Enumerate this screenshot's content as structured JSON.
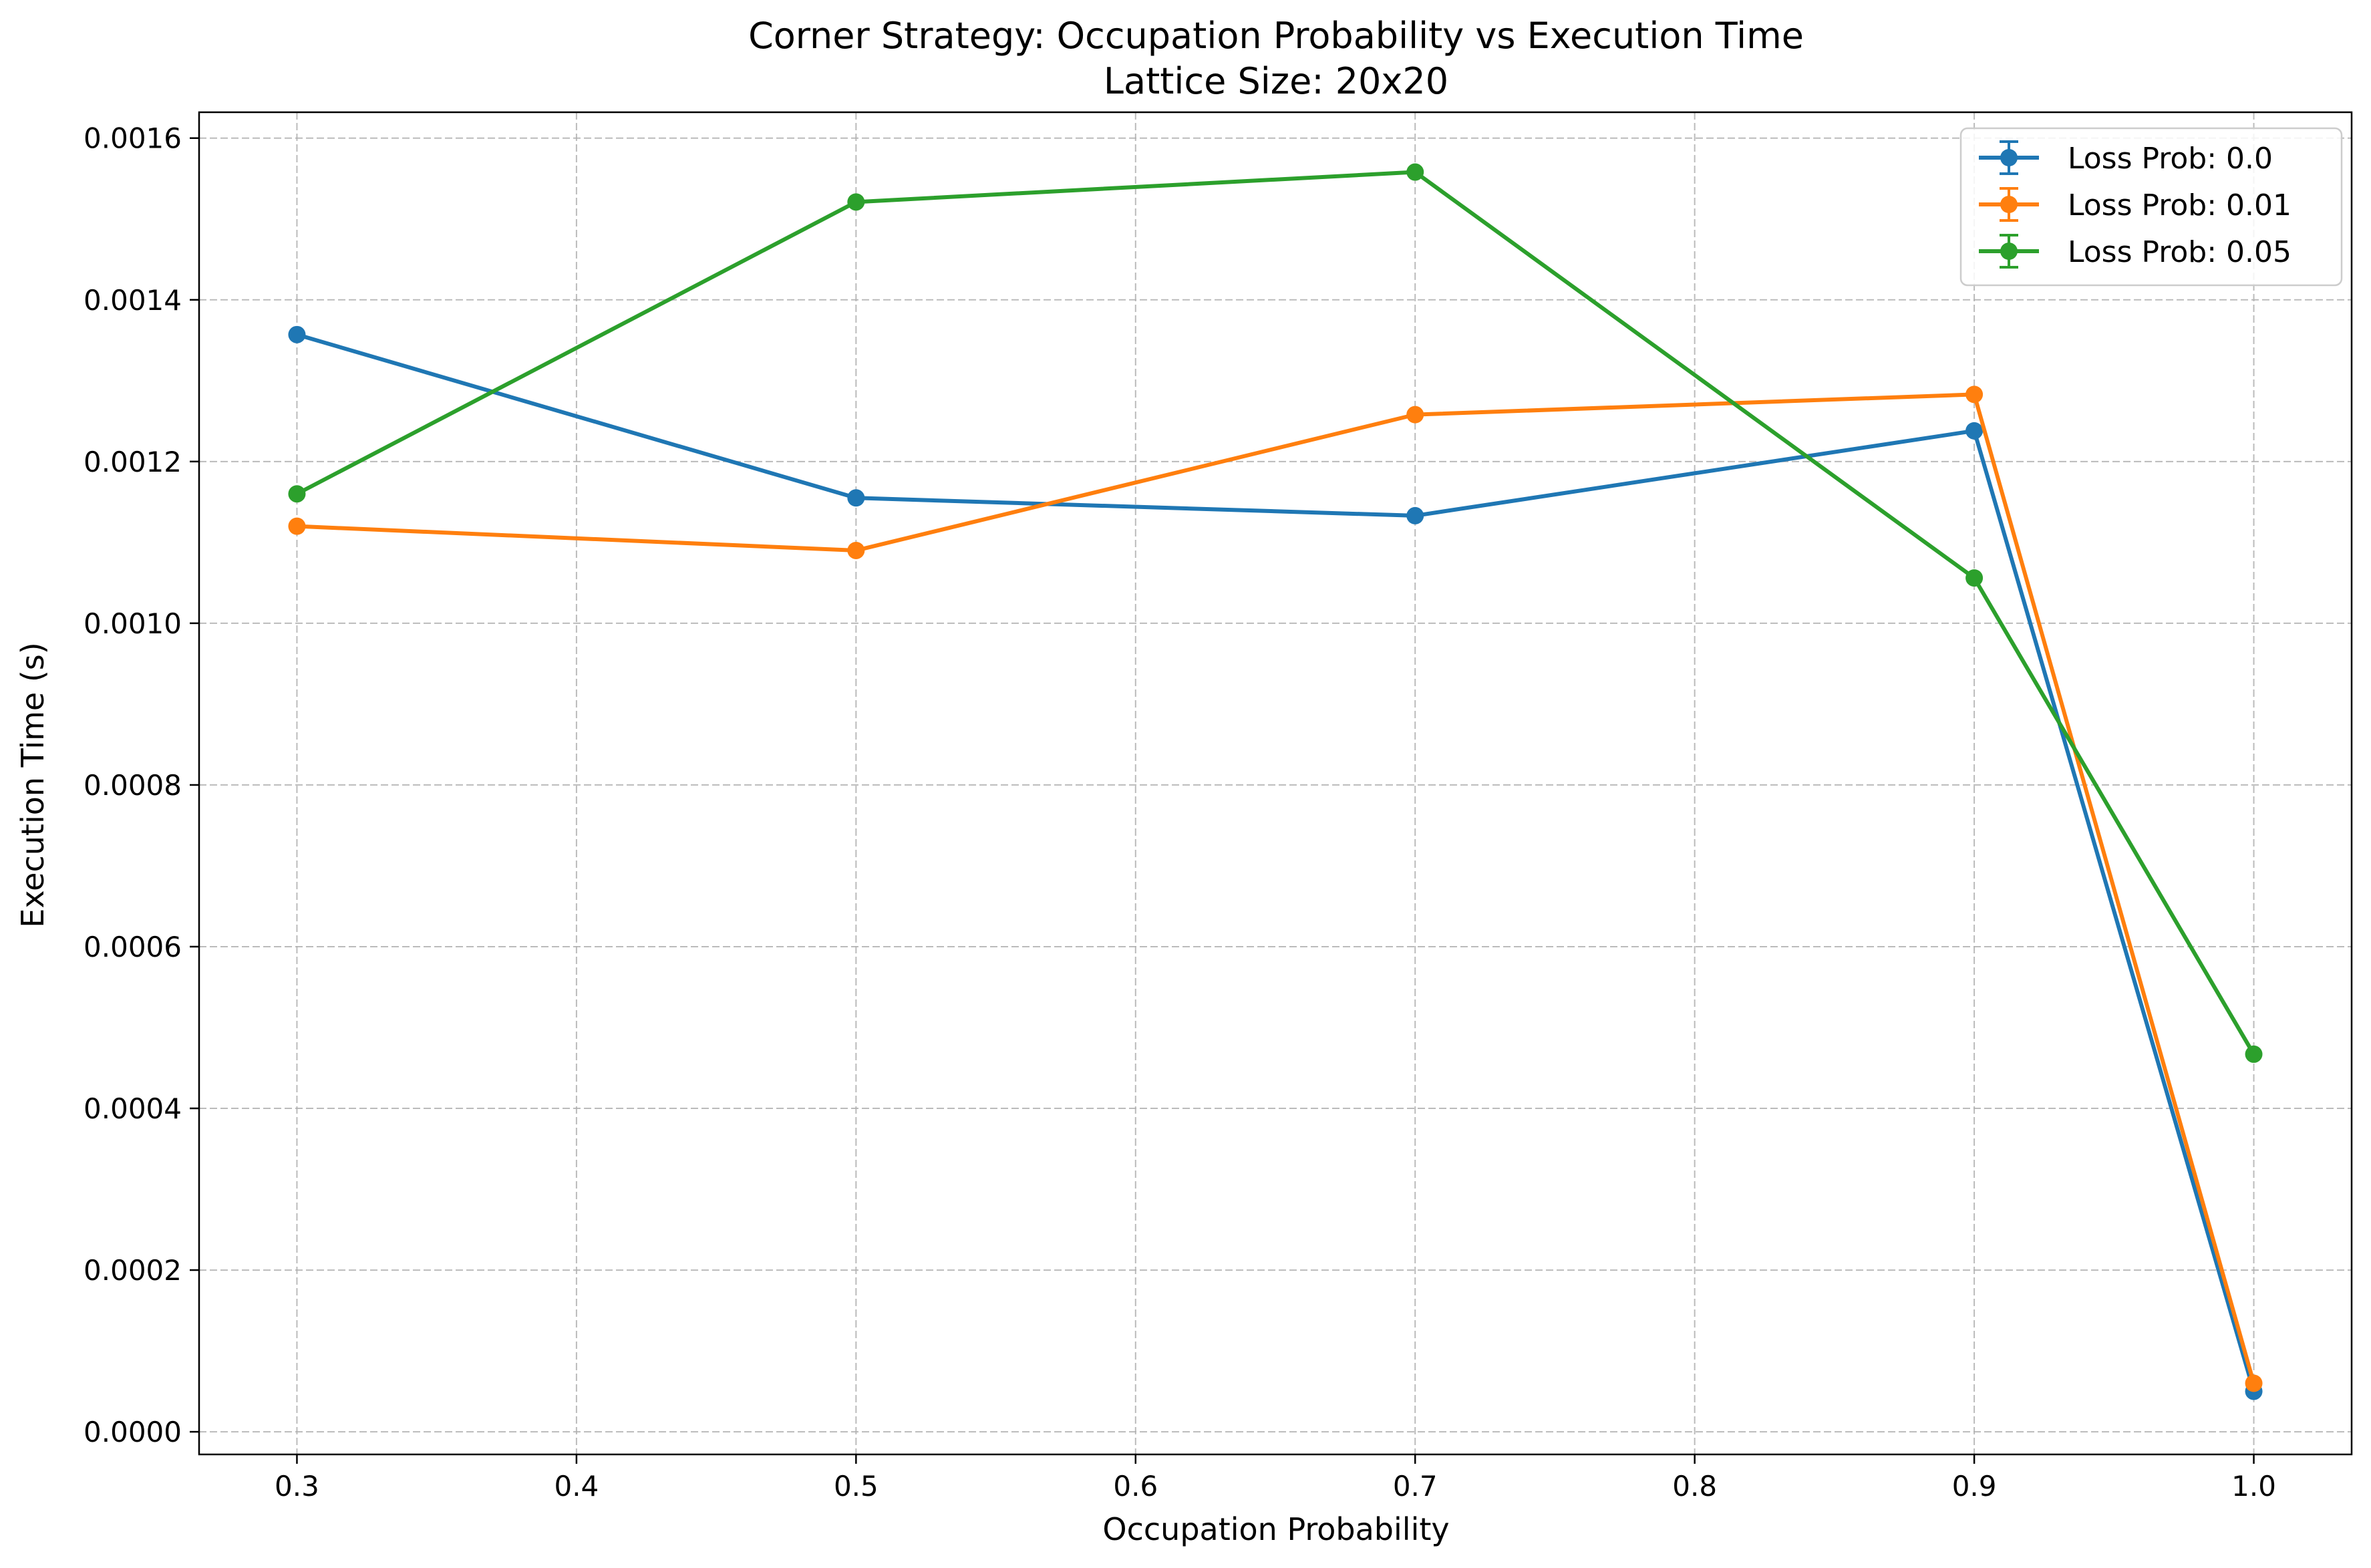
{
  "chart_data": {
    "type": "line",
    "title": "Corner Strategy: Occupation Probability vs Execution Time",
    "subtitle": "Lattice Size: 20x20",
    "xlabel": "Occupation Probability",
    "ylabel": "Execution Time (s)",
    "x": [
      0.3,
      0.5,
      0.7,
      0.9,
      1.0
    ],
    "xlim": [
      0.265,
      1.035
    ],
    "ylim": [
      -2.8e-05,
      0.001632
    ],
    "xticks": [
      0.3,
      0.4,
      0.5,
      0.6,
      0.7,
      0.8,
      0.9,
      1.0
    ],
    "xtick_labels": [
      "0.3",
      "0.4",
      "0.5",
      "0.6",
      "0.7",
      "0.8",
      "0.9",
      "1.0"
    ],
    "yticks": [
      0.0,
      0.0002,
      0.0004,
      0.0006,
      0.0008,
      0.001,
      0.0012,
      0.0014,
      0.0016
    ],
    "ytick_labels": [
      "0.0000",
      "0.0002",
      "0.0004",
      "0.0006",
      "0.0008",
      "0.0010",
      "0.0012",
      "0.0014",
      "0.0016"
    ],
    "grid": true,
    "legend_position": "top-right",
    "series": [
      {
        "name": "Loss Prob: 0.0",
        "color": "#1f77b4",
        "values": [
          0.001357,
          0.001155,
          0.001133,
          0.001238,
          5e-05
        ]
      },
      {
        "name": "Loss Prob: 0.01",
        "color": "#ff7f0e",
        "values": [
          0.00112,
          0.00109,
          0.001258,
          0.001283,
          6e-05
        ]
      },
      {
        "name": "Loss Prob: 0.05",
        "color": "#2ca02c",
        "values": [
          0.00116,
          0.001521,
          0.001558,
          0.001056,
          0.000467
        ]
      }
    ]
  }
}
